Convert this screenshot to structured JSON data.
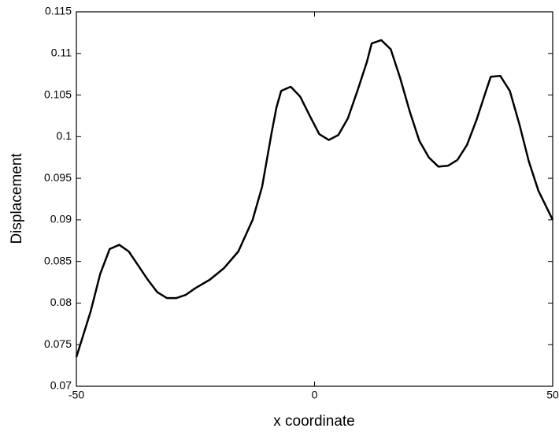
{
  "chart_data": {
    "type": "line",
    "x_label": "x coordinate",
    "y_label": "Displacement",
    "x": [
      -50,
      -47,
      -45,
      -43,
      -41,
      -39,
      -37,
      -35,
      -33,
      -31,
      -29,
      -27,
      -25,
      -22,
      -19,
      -16,
      -13,
      -11,
      -9,
      -8,
      -7,
      -5,
      -3,
      -1,
      1,
      3,
      5,
      7,
      9,
      11,
      12,
      14,
      16,
      18,
      20,
      22,
      24,
      26,
      28,
      30,
      32,
      34,
      36,
      37,
      39,
      41,
      43,
      45,
      47,
      50
    ],
    "series": [
      {
        "color": "#000000",
        "values": [
          0.0735,
          0.079,
          0.0835,
          0.0865,
          0.087,
          0.0862,
          0.0845,
          0.0828,
          0.0813,
          0.0806,
          0.0806,
          0.081,
          0.0818,
          0.0828,
          0.0842,
          0.0862,
          0.09,
          0.094,
          0.1005,
          0.1035,
          0.1055,
          0.106,
          0.1048,
          0.1025,
          0.1003,
          0.0996,
          0.1002,
          0.1022,
          0.1055,
          0.109,
          0.1112,
          0.1116,
          0.1105,
          0.107,
          0.103,
          0.0995,
          0.0975,
          0.0964,
          0.0965,
          0.0972,
          0.099,
          0.102,
          0.1055,
          0.1072,
          0.1073,
          0.1055,
          0.1015,
          0.097,
          0.0935,
          0.09
        ]
      }
    ],
    "xlim": [
      -50,
      50
    ],
    "xticks": [
      -50,
      0,
      50
    ],
    "ylim": [
      0.07,
      0.115
    ],
    "yticks": [
      0.07,
      0.075,
      0.08,
      0.085,
      0.09,
      0.095,
      0.1,
      0.105,
      0.11,
      0.115
    ],
    "grid": false
  }
}
